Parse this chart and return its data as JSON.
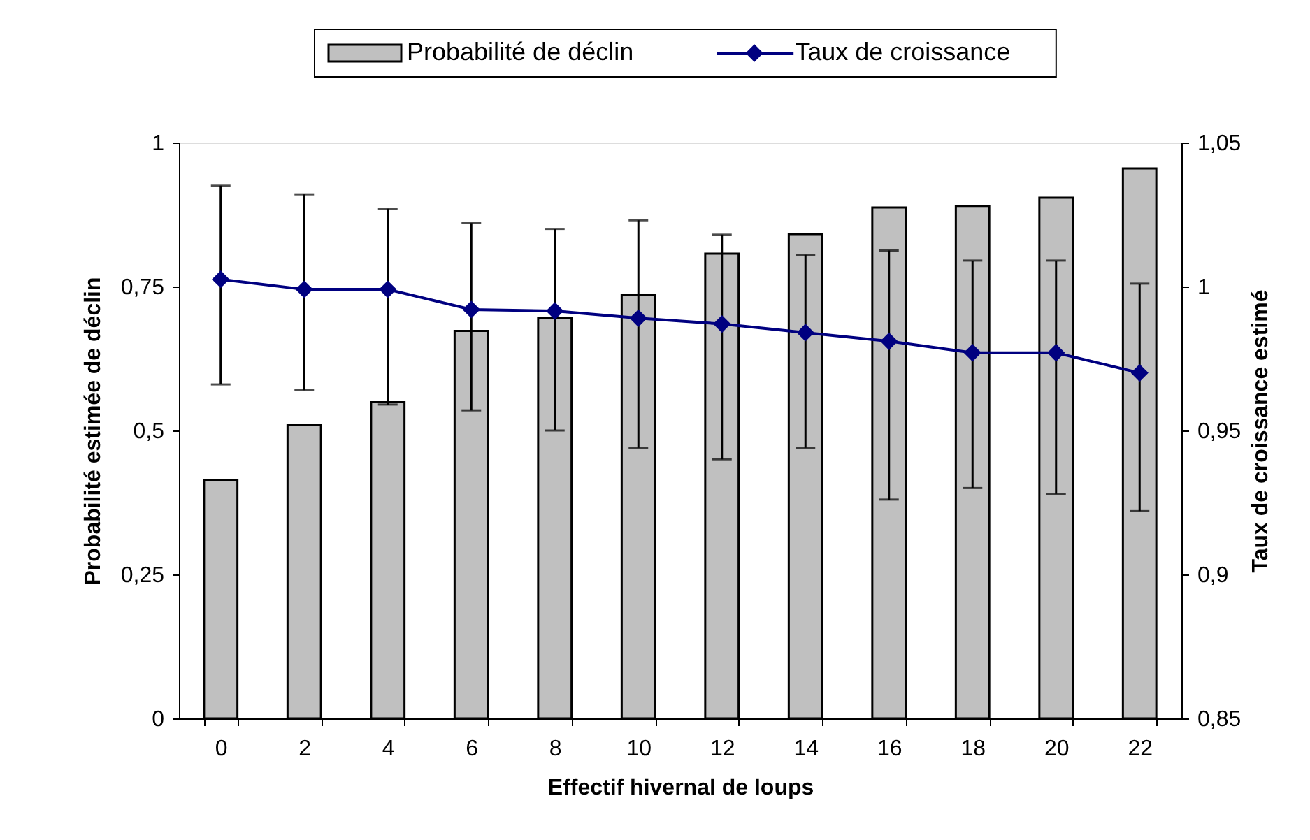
{
  "chart_data": {
    "type": "bar",
    "xlabel": "Effectif hivernal de loups",
    "ylabel": "Probabilité estimée de déclin",
    "y2label": "Taux de croissance estimé",
    "categories": [
      "0",
      "2",
      "4",
      "6",
      "8",
      "10",
      "12",
      "14",
      "16",
      "18",
      "20",
      "22"
    ],
    "series": [
      {
        "name": "Probabilité de déclin",
        "color": "#c0c0c0",
        "values": [
          0.414,
          0.509,
          0.549,
          0.673,
          0.695,
          0.736,
          0.807,
          0.841,
          0.887,
          0.89,
          0.904,
          0.955
        ]
      },
      {
        "name": "Taux de croissance",
        "type": "line",
        "axis": "y2",
        "color": "#000080",
        "marker": "diamond",
        "values": [
          1.0025,
          0.999,
          0.999,
          0.992,
          0.9915,
          0.989,
          0.987,
          0.984,
          0.981,
          0.977,
          0.977,
          0.97
        ],
        "errors": [
          [
            0.966,
            1.035
          ],
          [
            0.964,
            1.032
          ],
          [
            0.959,
            1.027
          ],
          [
            0.957,
            1.022
          ],
          [
            0.95,
            1.02
          ],
          [
            0.944,
            1.023
          ],
          [
            0.94,
            1.018
          ],
          [
            0.944,
            1.011
          ],
          [
            0.926,
            1.0125
          ],
          [
            0.93,
            1.009
          ],
          [
            0.928,
            1.009
          ],
          [
            0.922,
            1.001
          ]
        ]
      }
    ],
    "ylim": [
      0,
      1
    ],
    "yticks": [
      0,
      {
        "value": 0.25,
        "label": "0,25"
      },
      {
        "value": 0.5,
        "label": "0,5"
      },
      {
        "value": 0.75,
        "label": "0,75"
      },
      1
    ],
    "y2lim": [
      0.85,
      1.05
    ],
    "y2ticks": [
      {
        "value": 0.85,
        "label": "0,85"
      },
      {
        "value": 0.9,
        "label": "0,9"
      },
      {
        "value": 0.95,
        "label": "0,95"
      },
      1,
      {
        "value": 1.05,
        "label": "1,05"
      }
    ],
    "grid": false,
    "legend": "top"
  }
}
